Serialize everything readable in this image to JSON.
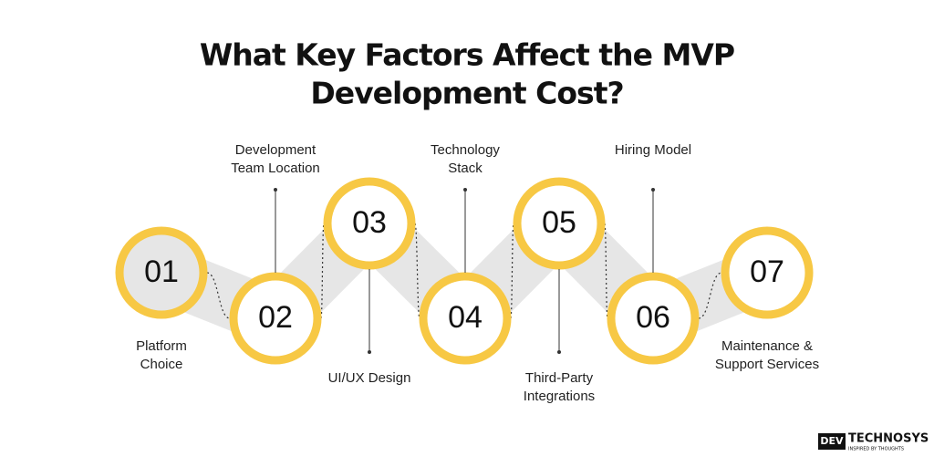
{
  "header": {
    "title": [
      "What Key Factors Affect the MVP",
      "Development Cost?"
    ]
  },
  "nodes": [
    {
      "number": "01",
      "label": [
        "Platform",
        "Choice"
      ]
    },
    {
      "number": "02",
      "label": [
        "Development",
        "Team Location"
      ]
    },
    {
      "number": "03",
      "label": [
        "UI/UX Design"
      ]
    },
    {
      "number": "04",
      "label": [
        "Technology",
        "Stack"
      ]
    },
    {
      "number": "05",
      "label": [
        "Third-Party",
        "Integrations"
      ]
    },
    {
      "number": "06",
      "label": [
        "Hiring Model"
      ]
    },
    {
      "number": "07",
      "label": [
        "Maintenance &",
        "Support Services"
      ]
    }
  ],
  "logo": {
    "brand": "DEV",
    "name": "TECHNOSYS",
    "tagline": "INSPIRED BY THOUGHTS"
  }
}
